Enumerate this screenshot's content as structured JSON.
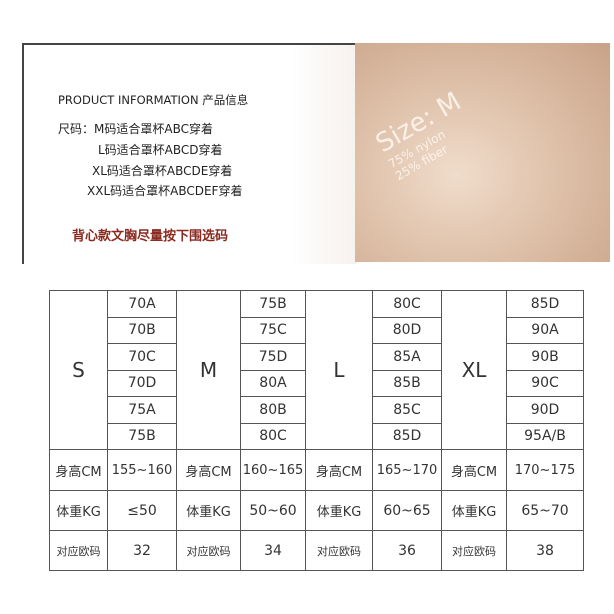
{
  "info": {
    "title": "PRODUCT INFORMATION 产品信息",
    "lines": [
      "尺码：M码适合罩杯ABC穿着",
      "L码适合罩杯ABCD穿着",
      "XL码适合罩杯ABCDE穿着",
      "XXL码适合罩杯ABCDEF穿着"
    ],
    "note": "背心款文胸尽量按下围选码",
    "note_color": "#8b2a20"
  },
  "photo": {
    "label_size": "Size: M",
    "label_lines": [
      "75% nylon",
      "25% fiber"
    ]
  },
  "table": {
    "sizes": [
      {
        "size": "S",
        "cups": [
          "70A",
          "70B",
          "70C",
          "70D",
          "75A",
          "75B"
        ],
        "height": "155~160",
        "weight": "≤50",
        "eu": "32"
      },
      {
        "size": "M",
        "cups": [
          "75B",
          "75C",
          "75D",
          "80A",
          "80B",
          "80C"
        ],
        "height": "160~165",
        "weight": "50~60",
        "eu": "34"
      },
      {
        "size": "L",
        "cups": [
          "80C",
          "80D",
          "85A",
          "85B",
          "85C",
          "85D"
        ],
        "height": "165~170",
        "weight": "60~65",
        "eu": "36"
      },
      {
        "size": "XL",
        "cups": [
          "85D",
          "90A",
          "90B",
          "90C",
          "90D",
          "95A/B"
        ],
        "height": "170~175",
        "weight": "65~70",
        "eu": "38"
      }
    ],
    "height_label": "身高CM",
    "weight_label": "体重KG",
    "eu_label": "对应欧码"
  }
}
